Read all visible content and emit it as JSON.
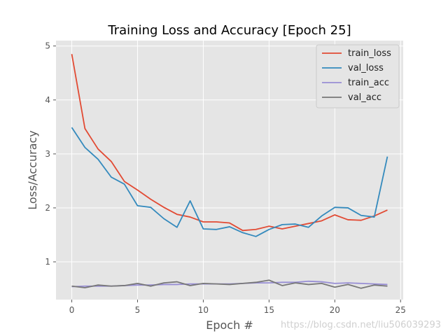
{
  "chart_data": {
    "type": "line",
    "title": "Training Loss and Accuracy [Epoch 25]",
    "xlabel": "Epoch #",
    "ylabel": "Loss/Accuracy",
    "xlim": [
      -1.2,
      25.2
    ],
    "ylim": [
      0.3,
      5.1
    ],
    "xticks": [
      0,
      5,
      10,
      15,
      20,
      25
    ],
    "yticks": [
      1,
      2,
      3,
      4,
      5
    ],
    "grid": true,
    "legend_position": "top-right",
    "x": [
      0,
      1,
      2,
      3,
      4,
      5,
      6,
      7,
      8,
      9,
      10,
      11,
      12,
      13,
      14,
      15,
      16,
      17,
      18,
      19,
      20,
      21,
      22,
      23,
      24
    ],
    "series": [
      {
        "name": "train_loss",
        "color": "#E24A33",
        "values": [
          4.85,
          3.47,
          3.09,
          2.86,
          2.49,
          2.33,
          2.16,
          2.01,
          1.88,
          1.83,
          1.74,
          1.74,
          1.72,
          1.58,
          1.6,
          1.66,
          1.61,
          1.66,
          1.71,
          1.76,
          1.87,
          1.78,
          1.77,
          1.85,
          1.96
        ]
      },
      {
        "name": "val_loss",
        "color": "#348ABD",
        "values": [
          3.49,
          3.12,
          2.9,
          2.57,
          2.44,
          2.04,
          2.01,
          1.8,
          1.64,
          2.13,
          1.61,
          1.6,
          1.65,
          1.54,
          1.47,
          1.6,
          1.69,
          1.7,
          1.64,
          1.85,
          2.01,
          2.0,
          1.86,
          1.83,
          2.95
        ]
      },
      {
        "name": "train_acc",
        "color": "#988ED5",
        "values": [
          0.54,
          0.55,
          0.55,
          0.55,
          0.56,
          0.57,
          0.57,
          0.58,
          0.58,
          0.59,
          0.59,
          0.59,
          0.59,
          0.6,
          0.61,
          0.61,
          0.62,
          0.62,
          0.64,
          0.63,
          0.6,
          0.61,
          0.6,
          0.59,
          0.58
        ]
      },
      {
        "name": "val_acc",
        "color": "#777777",
        "values": [
          0.55,
          0.52,
          0.57,
          0.55,
          0.56,
          0.6,
          0.55,
          0.61,
          0.63,
          0.56,
          0.6,
          0.59,
          0.58,
          0.6,
          0.62,
          0.66,
          0.56,
          0.61,
          0.58,
          0.6,
          0.53,
          0.58,
          0.51,
          0.57,
          0.55
        ]
      }
    ]
  },
  "watermark": "https://blog.csdn.net/liu506039293"
}
